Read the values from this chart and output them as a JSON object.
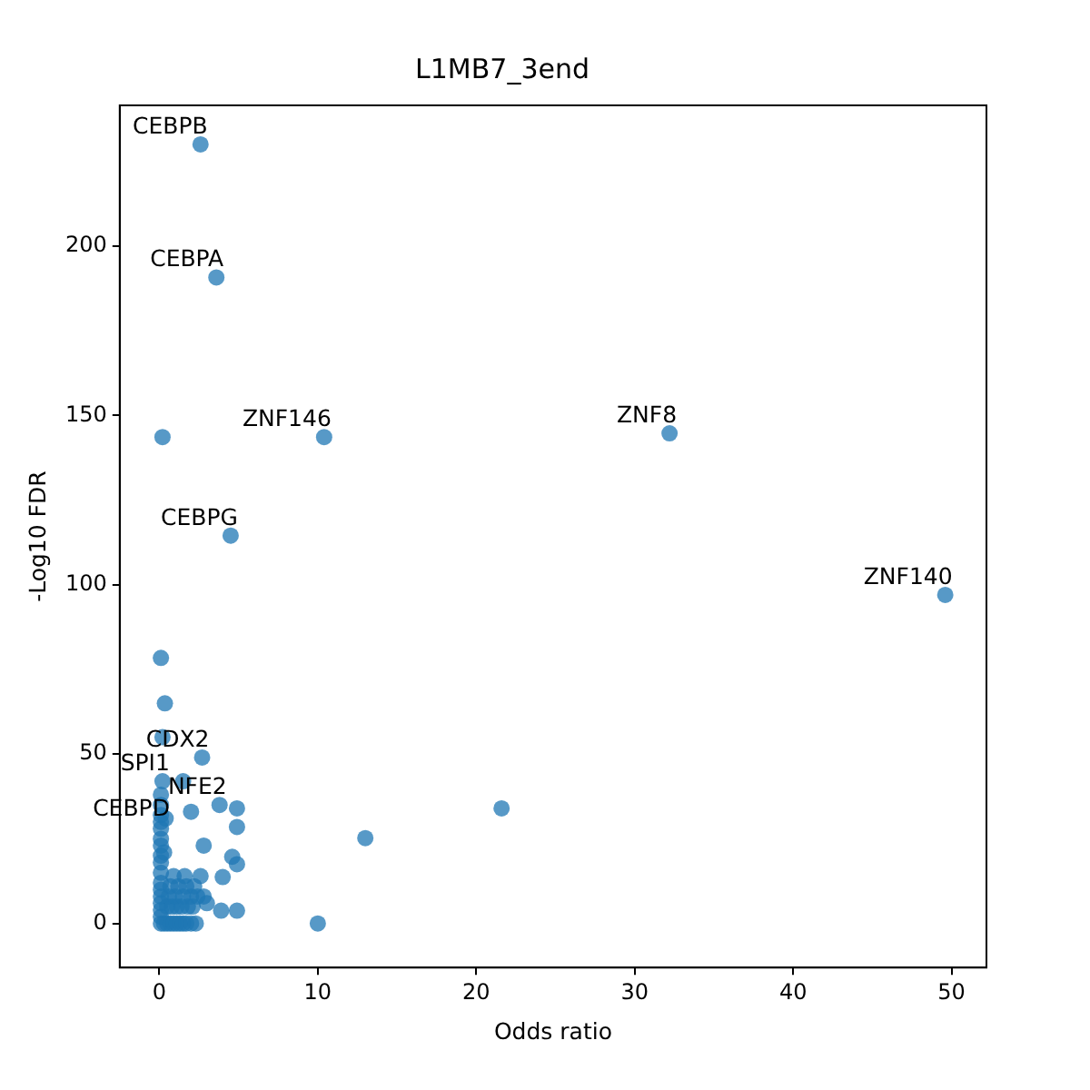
{
  "chart_data": {
    "type": "scatter",
    "title": "L1MB7_3end",
    "xlabel": "Odds ratio",
    "ylabel": "-Log10 FDR",
    "xlim": [
      -2.5,
      52.2
    ],
    "ylim": [
      -13,
      241.5
    ],
    "xticks": [
      0,
      10,
      20,
      30,
      40,
      50
    ],
    "yticks": [
      0,
      50,
      100,
      150,
      200
    ],
    "grid": false,
    "legend": false,
    "marker": "circle",
    "series": [
      {
        "color": "#1f77b4",
        "x": [
          2.6,
          3.6,
          0.2,
          10.4,
          32.2,
          4.5,
          49.6,
          0.1,
          0.35,
          0.2,
          2.7,
          0.2,
          1.5,
          2,
          3.8,
          4.9,
          4.9,
          2.8,
          4.6,
          4.9,
          4,
          3.9,
          4.9,
          10,
          13,
          21.6,
          2.8,
          0.1,
          0.1,
          0.1,
          0.1,
          0.1,
          0.1,
          0.1,
          0.1,
          0.1,
          0.1,
          0.1,
          0.1,
          0.1,
          0.1,
          0.1,
          0.1,
          0.1,
          0.3,
          0.5,
          0.7,
          0.9,
          1.1,
          1.3,
          1.5,
          1.7,
          2,
          2.3,
          0.5,
          0.8,
          1.1,
          1.4,
          1.8,
          2.1,
          0.6,
          1,
          1.5,
          2,
          2.4,
          0.7,
          1.2,
          1.7,
          2.2,
          0.9,
          1.6,
          2.6,
          3,
          0.3,
          0.4
        ],
        "values": [
          230,
          190.7,
          143.6,
          143.6,
          144.7,
          114.5,
          97,
          78.4,
          65,
          55,
          49,
          42,
          42,
          33,
          35,
          34,
          28.5,
          23,
          19.7,
          17.5,
          13.7,
          3.8,
          3.8,
          0,
          25.2,
          34,
          8,
          0,
          2,
          4,
          6,
          8,
          10,
          12,
          15,
          18,
          20,
          23,
          25,
          28,
          30,
          32,
          35,
          38,
          0,
          0,
          0,
          0,
          0,
          0,
          0,
          0,
          0,
          0,
          5,
          5,
          5,
          5,
          5,
          5,
          8,
          8,
          8,
          8,
          8,
          11,
          11,
          11,
          11,
          14,
          14,
          14,
          6,
          21,
          31
        ]
      }
    ],
    "annotations": [
      {
        "text": "CEBPB",
        "x": 2.6,
        "y": 230
      },
      {
        "text": "CEBPA",
        "x": 3.6,
        "y": 190.7
      },
      {
        "text": "ZNF146",
        "x": 10.4,
        "y": 143.6
      },
      {
        "text": "ZNF8",
        "x": 32.2,
        "y": 144.7
      },
      {
        "text": "CEBPG",
        "x": 4.5,
        "y": 114.5
      },
      {
        "text": "ZNF140",
        "x": 49.6,
        "y": 97
      },
      {
        "text": "CDX2",
        "x": 2.7,
        "y": 49
      },
      {
        "text": "SPI1",
        "x": 0.2,
        "y": 42
      },
      {
        "text": "NFE2",
        "x": 3.8,
        "y": 35
      },
      {
        "text": "CEBPD",
        "x": 0.2,
        "y": 28.5
      }
    ]
  }
}
